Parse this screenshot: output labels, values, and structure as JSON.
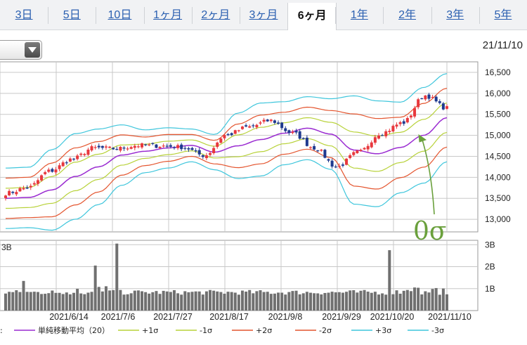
{
  "tabs": [
    {
      "label": "3日",
      "active": false
    },
    {
      "label": "5日",
      "active": false
    },
    {
      "label": "10日",
      "active": false
    },
    {
      "label": "1ヶ月",
      "active": false
    },
    {
      "label": "2ヶ月",
      "active": false
    },
    {
      "label": "3ヶ月",
      "active": false
    },
    {
      "label": "6ヶ月",
      "active": true
    },
    {
      "label": "1年",
      "active": false
    },
    {
      "label": "2年",
      "active": false
    },
    {
      "label": "3年",
      "active": false
    },
    {
      "label": "5年",
      "active": false
    }
  ],
  "date_label": "21/11/10",
  "colors": {
    "up_candle": "#e8383d",
    "down_candle": "#1f3a8f",
    "sma": "#9a2bd1",
    "sigma1": "#b8d23a",
    "sigma2": "#e4552f",
    "sigma3": "#3fc6dc",
    "volume": "#707070",
    "grid": "#c8c8c8",
    "annotation": "#6aa03c"
  },
  "annotation": {
    "label": "0σ",
    "points_to": "単純移動平均(20)"
  },
  "legend": [
    {
      "label": "単純移動平均（20）",
      "color": "#9a2bd1"
    },
    {
      "label": "+1σ",
      "color": "#b8d23a"
    },
    {
      "label": "-1σ",
      "color": "#b8d23a"
    },
    {
      "label": "+2σ",
      "color": "#e4552f"
    },
    {
      "label": "-2σ",
      "color": "#e4552f"
    },
    {
      "label": "+3σ",
      "color": "#3fc6dc"
    },
    {
      "label": "-3σ",
      "color": "#3fc6dc"
    }
  ],
  "chart_data": {
    "type": "candlestick",
    "price_axis": {
      "ticks": [
        13000,
        13500,
        14000,
        14500,
        15000,
        15500,
        16000,
        16500
      ],
      "tick_labels": [
        "13,000",
        "13,500",
        "14,000",
        "14,500",
        "15,000",
        "15,500",
        "16,000",
        "16,500"
      ],
      "range": [
        12700,
        16750
      ]
    },
    "volume_axis": {
      "ticks": [
        1,
        2,
        3
      ],
      "tick_labels": [
        "1B",
        "2B",
        "3B"
      ],
      "range": [
        0,
        3.2
      ],
      "top_left_label": "3B"
    },
    "x_tick_labels": [
      "2021/6/14",
      "2021/7/6",
      "2021/7/27",
      "2021/8/17",
      "2021/9/8",
      "2021/9/29",
      "2021/10/20",
      "2021/11/10"
    ],
    "sma_anchors": [
      13500,
      13520,
      13700,
      14020,
      14250,
      14530,
      14620,
      14700,
      14760,
      14600,
      14750,
      14900,
      15050,
      15170,
      15030,
      14650,
      14560,
      14710,
      15000,
      15420
    ],
    "sigma_anchors": [
      240,
      240,
      320,
      340,
      300,
      240,
      170,
      160,
      130,
      140,
      260,
      290,
      250,
      250,
      280,
      430,
      420,
      360,
      380,
      350
    ],
    "close_anchors": [
      13620,
      13750,
      14150,
      14430,
      14700,
      14680,
      14760,
      14750,
      14720,
      14520,
      15010,
      15200,
      15350,
      15050,
      14700,
      14250,
      14600,
      15050,
      15300,
      15950,
      15650
    ]
  }
}
